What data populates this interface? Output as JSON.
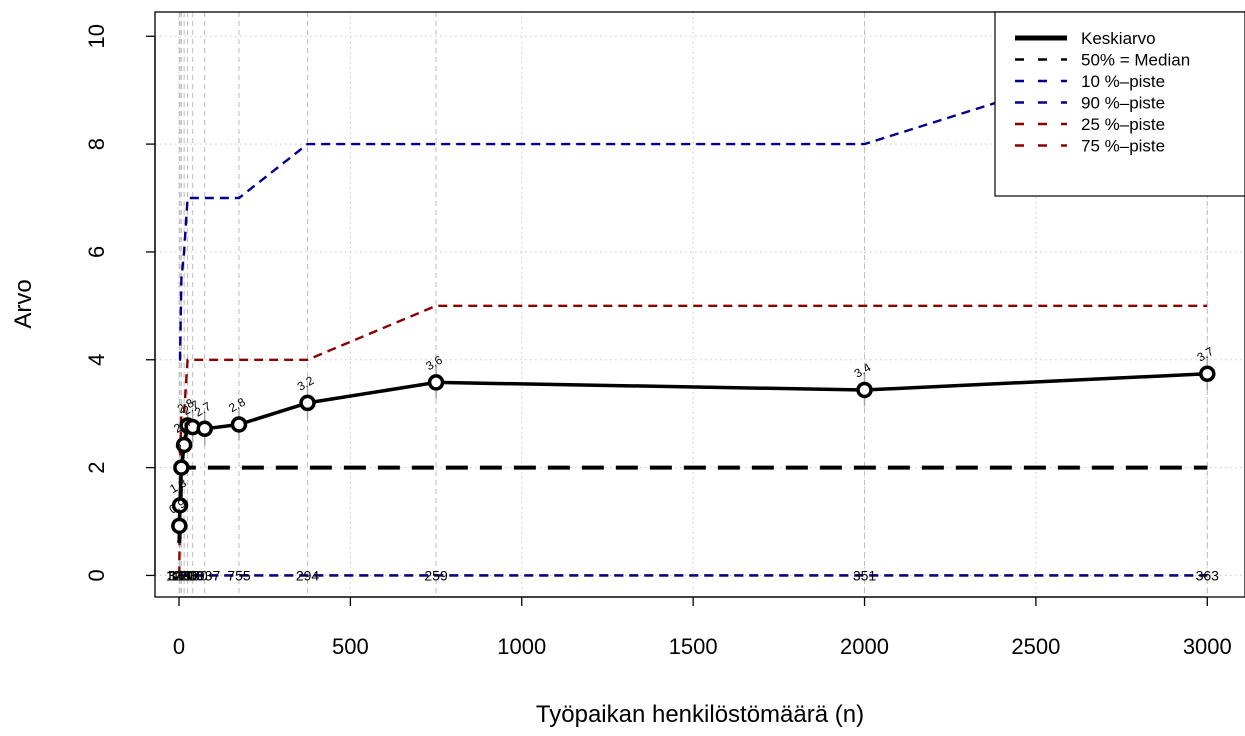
{
  "chart_data": {
    "type": "line",
    "xlabel": "Työpaikan henkilöstömäärä (n)",
    "ylabel": "Arvo",
    "xlim": [
      -70,
      3110
    ],
    "ylim": [
      -0.4,
      10.45
    ],
    "xticks": [
      0,
      500,
      1000,
      1500,
      2000,
      2500,
      3000
    ],
    "yticks": [
      0,
      2,
      4,
      6,
      8,
      10
    ],
    "grid": true,
    "legend_position": "top-right",
    "x": [
      1,
      3,
      7,
      15,
      25,
      40,
      75,
      175,
      375,
      750,
      2000,
      3000
    ],
    "counts": [
      "329",
      "347",
      "1223",
      "1157",
      "1210",
      "1130",
      "1037",
      "755",
      "294",
      "259",
      "351",
      "363"
    ],
    "value_labels": [
      "0.9",
      "1.3",
      "2",
      "2.4",
      "2.8",
      "2.7",
      "2.7",
      "2.8",
      "3.2",
      "3.6",
      "3.4",
      "3.7"
    ],
    "series": [
      {
        "name": "Keskiarvo",
        "color": "#000000",
        "style": "solid",
        "values": [
          0.92,
          1.3,
          2.0,
          2.42,
          2.78,
          2.75,
          2.72,
          2.8,
          3.2,
          3.58,
          3.44,
          3.74
        ]
      },
      {
        "name": "50% = Median",
        "color": "#000000",
        "style": "dashed",
        "values": [
          0.6,
          1.0,
          2.0,
          2.0,
          2.0,
          2.0,
          2.0,
          2.0,
          2.0,
          2.0,
          2.0,
          2.0
        ]
      },
      {
        "name": "10 %–piste",
        "color": "#00008b",
        "style": "dashed",
        "values": [
          0,
          0,
          0,
          0,
          0,
          0,
          0,
          0,
          0,
          0,
          0,
          0
        ]
      },
      {
        "name": "90 %–piste",
        "color": "#00008b",
        "style": "dashed",
        "values": [
          4.0,
          4.0,
          5.5,
          6.0,
          7.0,
          7.0,
          7.0,
          7.0,
          8.0,
          8.0,
          8.0,
          10.0
        ]
      },
      {
        "name": "25 %–piste",
        "color": "#8b0000",
        "style": "dashed",
        "values": [
          0,
          0,
          0,
          0,
          0,
          0,
          0,
          0,
          0,
          0,
          0,
          0
        ]
      },
      {
        "name": "75 %–piste",
        "color": "#8b0000",
        "style": "dashed",
        "values": [
          0.0,
          2.0,
          3.0,
          3.0,
          4.0,
          4.0,
          4.0,
          4.0,
          4.0,
          5.0,
          5.0,
          5.0
        ]
      }
    ]
  }
}
